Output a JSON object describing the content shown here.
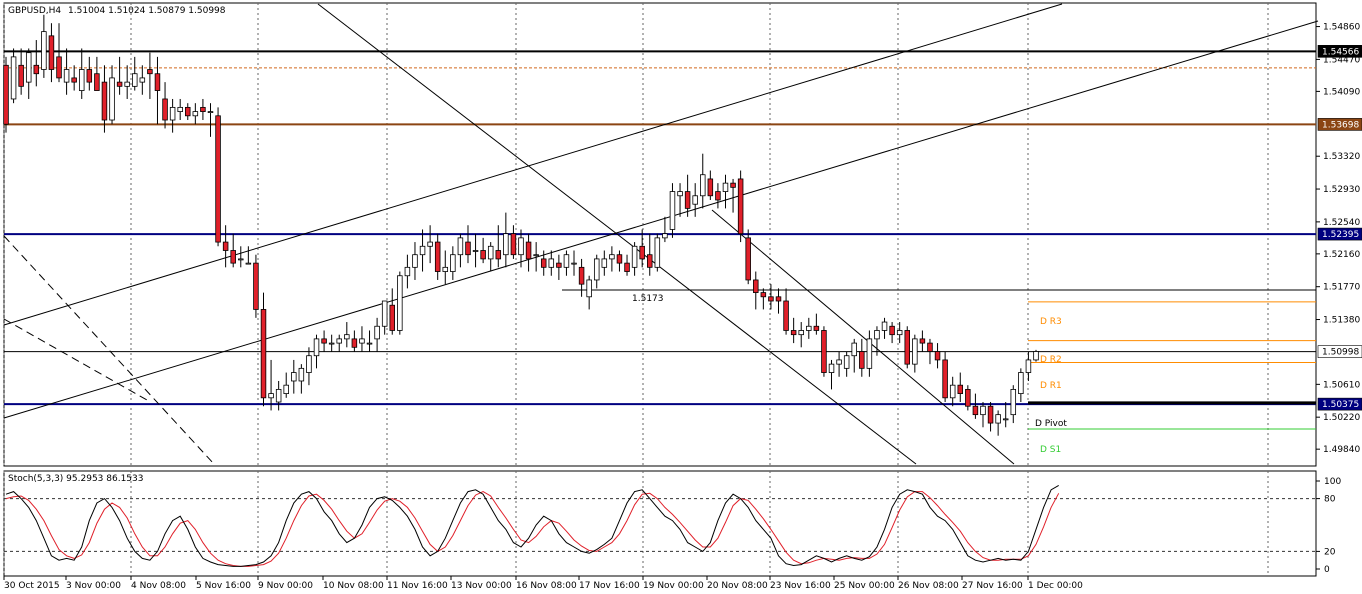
{
  "header": {
    "symbol": "GBPUSD,H4",
    "ohlc": "1.51004 1.51024 1.50879 1.50998"
  },
  "stoch_header": "Stoch(5,3,3) 95.2953 86.1533",
  "colors": {
    "bull": "#ffffff",
    "bear": "#e0202a",
    "wick": "#000000",
    "navy": "#000080",
    "brown": "#8b4513",
    "orange": "#ff8c00",
    "green": "#33cc33",
    "stoch_main": "#000000",
    "stoch_signal": "#e0202a"
  },
  "chart_data": {
    "type": "candlestick",
    "symbol": "GBPUSD",
    "timeframe": "H4",
    "ylim": [
      1.4964,
      1.5514
    ],
    "y_ticks": [
      "1.54860",
      "1.54470",
      "1.54090",
      "1.53320",
      "1.52930",
      "1.52540",
      "1.52160",
      "1.51770",
      "1.51380",
      "1.50610",
      "1.50220",
      "1.49840"
    ],
    "x_labels": [
      "30 Oct 2015",
      "3 Nov 00:00",
      "4 Nov 08:00",
      "5 Nov 16:00",
      "9 Nov 00:00",
      "10 Nov 08:00",
      "11 Nov 16:00",
      "13 Nov 00:00",
      "16 Nov 08:00",
      "17 Nov 16:00",
      "19 Nov 00:00",
      "20 Nov 08:00",
      "23 Nov 16:00",
      "25 Nov 00:00",
      "26 Nov 08:00",
      "27 Nov 16:00",
      "1 Dec 00:00"
    ],
    "candles": [
      [
        1.544,
        1.545,
        1.536,
        1.537
      ],
      [
        1.54,
        1.546,
        1.5395,
        1.545
      ],
      [
        1.544,
        1.546,
        1.5405,
        1.5415
      ],
      [
        1.542,
        1.546,
        1.54,
        1.5455
      ],
      [
        1.544,
        1.547,
        1.5415,
        1.543
      ],
      [
        1.5435,
        1.55,
        1.5425,
        1.548
      ],
      [
        1.5475,
        1.549,
        1.542,
        1.5435
      ],
      [
        1.545,
        1.549,
        1.542,
        1.5425
      ],
      [
        1.542,
        1.546,
        1.5405,
        1.5435
      ],
      [
        1.5425,
        1.544,
        1.541,
        1.542
      ],
      [
        1.541,
        1.546,
        1.54,
        1.5435
      ],
      [
        1.5435,
        1.545,
        1.541,
        1.542
      ],
      [
        1.543,
        1.545,
        1.541,
        1.541
      ],
      [
        1.542,
        1.544,
        1.536,
        1.5375
      ],
      [
        1.5375,
        1.544,
        1.537,
        1.5425
      ],
      [
        1.542,
        1.545,
        1.5405,
        1.5415
      ],
      [
        1.5415,
        1.544,
        1.54,
        1.542
      ],
      [
        1.5415,
        1.545,
        1.541,
        1.543
      ],
      [
        1.542,
        1.544,
        1.5405,
        1.5425
      ],
      [
        1.5435,
        1.5455,
        1.54,
        1.543
      ],
      [
        1.543,
        1.545,
        1.537,
        1.541
      ],
      [
        1.54,
        1.542,
        1.5365,
        1.5375
      ],
      [
        1.5375,
        1.54,
        1.536,
        1.539
      ],
      [
        1.5385,
        1.54,
        1.5375,
        1.539
      ],
      [
        1.539,
        1.5395,
        1.5375,
        1.538
      ],
      [
        1.538,
        1.5395,
        1.537,
        1.5385
      ],
      [
        1.539,
        1.54,
        1.5375,
        1.5385
      ],
      [
        1.5385,
        1.5395,
        1.5355,
        1.5385
      ],
      [
        1.538,
        1.539,
        1.5225,
        1.523
      ],
      [
        1.523,
        1.525,
        1.52,
        1.522
      ],
      [
        1.522,
        1.524,
        1.52,
        1.5205
      ],
      [
        1.521,
        1.5225,
        1.52,
        1.521
      ],
      [
        1.5205,
        1.5225,
        1.5205,
        1.5205
      ],
      [
        1.5205,
        1.5215,
        1.514,
        1.515
      ],
      [
        1.515,
        1.517,
        1.5035,
        1.5045
      ],
      [
        1.5045,
        1.509,
        1.503,
        1.505
      ],
      [
        1.504,
        1.5065,
        1.503,
        1.5055
      ],
      [
        1.505,
        1.5075,
        1.5045,
        1.506
      ],
      [
        1.5065,
        1.509,
        1.505,
        1.5075
      ],
      [
        1.5065,
        1.5085,
        1.505,
        1.508
      ],
      [
        1.5075,
        1.5105,
        1.506,
        1.5095
      ],
      [
        1.5095,
        1.512,
        1.508,
        1.5115
      ],
      [
        1.5115,
        1.5125,
        1.51,
        1.511
      ],
      [
        1.511,
        1.512,
        1.51,
        1.511
      ],
      [
        1.511,
        1.512,
        1.51,
        1.5115
      ],
      [
        1.5115,
        1.5135,
        1.5105,
        1.512
      ],
      [
        1.5115,
        1.5125,
        1.51,
        1.5105
      ],
      [
        1.511,
        1.513,
        1.51,
        1.5115
      ],
      [
        1.511,
        1.5125,
        1.51,
        1.511
      ],
      [
        1.5115,
        1.514,
        1.51,
        1.513
      ],
      [
        1.513,
        1.516,
        1.512,
        1.516
      ],
      [
        1.5155,
        1.5175,
        1.512,
        1.5125
      ],
      [
        1.5125,
        1.5195,
        1.512,
        1.519
      ],
      [
        1.519,
        1.5215,
        1.5175,
        1.52
      ],
      [
        1.52,
        1.523,
        1.5185,
        1.5215
      ],
      [
        1.5215,
        1.5245,
        1.5195,
        1.5225
      ],
      [
        1.5225,
        1.525,
        1.5205,
        1.523
      ],
      [
        1.523,
        1.524,
        1.5185,
        1.5195
      ],
      [
        1.5195,
        1.522,
        1.518,
        1.52
      ],
      [
        1.5195,
        1.5225,
        1.5185,
        1.5215
      ],
      [
        1.5215,
        1.524,
        1.52,
        1.5235
      ],
      [
        1.523,
        1.525,
        1.5205,
        1.5215
      ],
      [
        1.522,
        1.524,
        1.52,
        1.522
      ],
      [
        1.522,
        1.5235,
        1.5205,
        1.521
      ],
      [
        1.521,
        1.523,
        1.5195,
        1.5225
      ],
      [
        1.522,
        1.525,
        1.52,
        1.521
      ],
      [
        1.5215,
        1.5265,
        1.52,
        1.524
      ],
      [
        1.524,
        1.525,
        1.521,
        1.5215
      ],
      [
        1.5215,
        1.5245,
        1.52,
        1.5235
      ],
      [
        1.523,
        1.524,
        1.5195,
        1.521
      ],
      [
        1.5215,
        1.523,
        1.5195,
        1.5215
      ],
      [
        1.521,
        1.522,
        1.519,
        1.52
      ],
      [
        1.52,
        1.522,
        1.519,
        1.521
      ],
      [
        1.5205,
        1.5215,
        1.5185,
        1.52
      ],
      [
        1.52,
        1.522,
        1.519,
        1.5215
      ],
      [
        1.5205,
        1.522,
        1.519,
        1.5205
      ],
      [
        1.52,
        1.521,
        1.5165,
        1.518
      ],
      [
        1.5165,
        1.519,
        1.515,
        1.5185
      ],
      [
        1.5185,
        1.5215,
        1.5175,
        1.521
      ],
      [
        1.52,
        1.522,
        1.519,
        1.521
      ],
      [
        1.521,
        1.5225,
        1.5195,
        1.5215
      ],
      [
        1.5215,
        1.522,
        1.5195,
        1.5205
      ],
      [
        1.5205,
        1.5215,
        1.519,
        1.5195
      ],
      [
        1.52,
        1.523,
        1.519,
        1.5225
      ],
      [
        1.5225,
        1.5245,
        1.52,
        1.521
      ],
      [
        1.5215,
        1.524,
        1.519,
        1.52
      ],
      [
        1.52,
        1.524,
        1.5195,
        1.5235
      ],
      [
        1.5235,
        1.526,
        1.523,
        1.524
      ],
      [
        1.5245,
        1.53,
        1.5235,
        1.529
      ],
      [
        1.5285,
        1.53,
        1.526,
        1.529
      ],
      [
        1.529,
        1.531,
        1.526,
        1.527
      ],
      [
        1.5275,
        1.53,
        1.526,
        1.5285
      ],
      [
        1.5285,
        1.5335,
        1.527,
        1.531
      ],
      [
        1.5305,
        1.5315,
        1.528,
        1.5285
      ],
      [
        1.529,
        1.53,
        1.527,
        1.528
      ],
      [
        1.529,
        1.531,
        1.527,
        1.53
      ],
      [
        1.53,
        1.5305,
        1.5265,
        1.5295
      ],
      [
        1.5305,
        1.5315,
        1.523,
        1.524
      ],
      [
        1.5235,
        1.5245,
        1.518,
        1.5185
      ],
      [
        1.5185,
        1.5195,
        1.515,
        1.517
      ],
      [
        1.517,
        1.5175,
        1.515,
        1.5165
      ],
      [
        1.5165,
        1.518,
        1.515,
        1.516
      ],
      [
        1.5165,
        1.5175,
        1.5145,
        1.516
      ],
      [
        1.516,
        1.5175,
        1.512,
        1.5125
      ],
      [
        1.5125,
        1.514,
        1.511,
        1.512
      ],
      [
        1.512,
        1.5135,
        1.5105,
        1.5125
      ],
      [
        1.5125,
        1.514,
        1.5115,
        1.513
      ],
      [
        1.513,
        1.5145,
        1.512,
        1.5125
      ],
      [
        1.5125,
        1.513,
        1.507,
        1.5075
      ],
      [
        1.5075,
        1.509,
        1.5055,
        1.5085
      ],
      [
        1.5085,
        1.51,
        1.507,
        1.509
      ],
      [
        1.508,
        1.51,
        1.507,
        1.5095
      ],
      [
        1.5095,
        1.5115,
        1.5075,
        1.511
      ],
      [
        1.51,
        1.5115,
        1.507,
        1.508
      ],
      [
        1.508,
        1.5125,
        1.507,
        1.5115
      ],
      [
        1.5115,
        1.513,
        1.5095,
        1.5125
      ],
      [
        1.5125,
        1.514,
        1.5115,
        1.5135
      ],
      [
        1.513,
        1.5135,
        1.511,
        1.512
      ],
      [
        1.512,
        1.5135,
        1.511,
        1.5125
      ],
      [
        1.5125,
        1.513,
        1.508,
        1.5085
      ],
      [
        1.5085,
        1.512,
        1.5075,
        1.5115
      ],
      [
        1.5115,
        1.5125,
        1.51,
        1.511
      ],
      [
        1.511,
        1.5115,
        1.5085,
        1.51
      ],
      [
        1.51,
        1.511,
        1.508,
        1.509
      ],
      [
        1.509,
        1.51,
        1.504,
        1.5045
      ],
      [
        1.5045,
        1.507,
        1.5035,
        1.506
      ],
      [
        1.506,
        1.5075,
        1.504,
        1.505
      ],
      [
        1.5055,
        1.506,
        1.503,
        1.5035
      ],
      [
        1.5035,
        1.505,
        1.502,
        1.5025
      ],
      [
        1.5025,
        1.504,
        1.501,
        1.5035
      ],
      [
        1.5035,
        1.504,
        1.5005,
        1.5015
      ],
      [
        1.5015,
        1.503,
        1.5,
        1.5025
      ],
      [
        1.502,
        1.504,
        1.501,
        1.502
      ],
      [
        1.5025,
        1.506,
        1.5015,
        1.5055
      ],
      [
        1.505,
        1.508,
        1.504,
        1.5075
      ],
      [
        1.5075,
        1.51,
        1.5065,
        1.509
      ],
      [
        1.509,
        1.5102,
        1.5088,
        1.51
      ]
    ],
    "stochastic": {
      "label": "Stoch(5,3,3)",
      "main_value": 95.2953,
      "signal_value": 86.1533,
      "ylim": [
        0,
        100
      ],
      "levels": [
        20,
        80
      ],
      "tick_labels": [
        "100",
        "80",
        "20",
        "0"
      ],
      "main": [
        85,
        88,
        80,
        70,
        55,
        35,
        15,
        10,
        12,
        10,
        25,
        55,
        75,
        80,
        70,
        55,
        35,
        20,
        12,
        10,
        20,
        40,
        55,
        60,
        45,
        25,
        12,
        8,
        5,
        4,
        3,
        3,
        4,
        5,
        8,
        15,
        30,
        55,
        75,
        85,
        88,
        80,
        65,
        55,
        40,
        30,
        35,
        50,
        70,
        80,
        82,
        78,
        70,
        60,
        45,
        25,
        15,
        20,
        35,
        55,
        75,
        88,
        90,
        85,
        70,
        55,
        45,
        30,
        25,
        35,
        50,
        60,
        55,
        40,
        30,
        25,
        20,
        18,
        22,
        28,
        35,
        55,
        75,
        88,
        90,
        80,
        70,
        60,
        55,
        45,
        30,
        25,
        20,
        30,
        55,
        75,
        85,
        80,
        70,
        55,
        45,
        35,
        15,
        6,
        4,
        5,
        10,
        15,
        12,
        8,
        12,
        15,
        12,
        10,
        14,
        25,
        45,
        70,
        85,
        90,
        88,
        85,
        70,
        60,
        55,
        45,
        30,
        15,
        10,
        8,
        10,
        12,
        10,
        11,
        10,
        20,
        45,
        70,
        90,
        95
      ],
      "signal": [
        80,
        82,
        83,
        78,
        68,
        55,
        38,
        22,
        15,
        12,
        16,
        30,
        52,
        68,
        75,
        70,
        58,
        40,
        25,
        15,
        15,
        25,
        40,
        52,
        55,
        45,
        30,
        18,
        10,
        6,
        4,
        3,
        3,
        4,
        5,
        9,
        18,
        35,
        55,
        72,
        83,
        85,
        78,
        68,
        55,
        43,
        35,
        40,
        53,
        67,
        77,
        80,
        77,
        70,
        58,
        43,
        28,
        20,
        25,
        38,
        55,
        72,
        84,
        88,
        83,
        70,
        58,
        45,
        33,
        30,
        37,
        48,
        55,
        52,
        43,
        33,
        26,
        21,
        20,
        25,
        30,
        40,
        55,
        73,
        85,
        86,
        80,
        70,
        62,
        53,
        43,
        33,
        25,
        25,
        35,
        53,
        72,
        80,
        78,
        68,
        57,
        45,
        32,
        19,
        10,
        6,
        7,
        10,
        12,
        11,
        10,
        12,
        13,
        12,
        12,
        17,
        28,
        47,
        67,
        82,
        88,
        88,
        81,
        72,
        62,
        53,
        43,
        30,
        20,
        13,
        10,
        10,
        11,
        11,
        11,
        15,
        28,
        48,
        70,
        86
      ]
    },
    "levels": [
      {
        "label": "1.54566",
        "price": 1.54566
      },
      {
        "label": "1.53698",
        "price": 1.53698
      },
      {
        "label": "1.52395",
        "price": 1.52395
      },
      {
        "label": "1.50998",
        "price": 1.50998
      },
      {
        "label": "1.50375",
        "price": 1.50375
      }
    ],
    "annotations": {
      "level_1_5173": "1.5173",
      "pivots": {
        "r3": "D R3",
        "r2": "D R2",
        "r1": "D R1",
        "pivot": "D Pivot",
        "s1": "D S1"
      }
    }
  }
}
